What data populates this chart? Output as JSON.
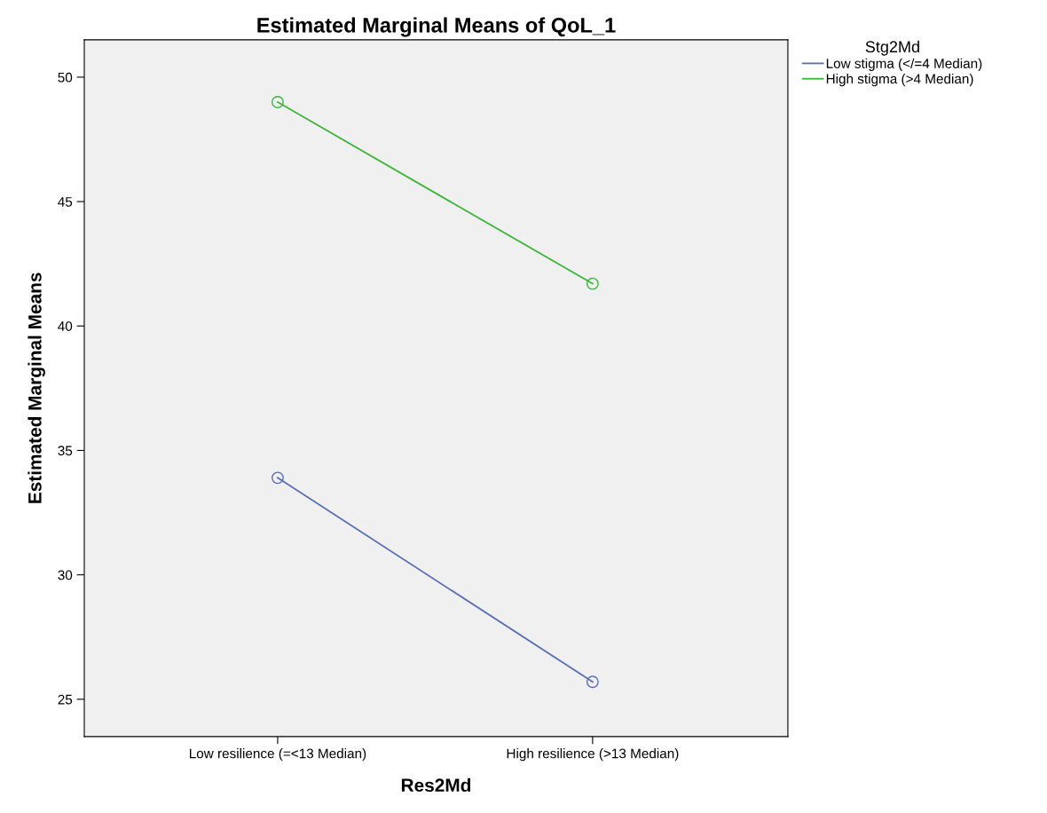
{
  "chart_data": {
    "type": "line",
    "title": "Estimated Marginal Means of QoL_1",
    "xlabel": "Res2Md",
    "ylabel": "Estimated Marginal Means",
    "categories": [
      "Low resilience (=<13 Median)",
      "High resilience (>13 Median)"
    ],
    "series": [
      {
        "name": "Low stigma (</=4 Median)",
        "color": "#5a6eb4",
        "values": [
          33.9,
          25.7
        ]
      },
      {
        "name": "High stigma (>4 Median)",
        "color": "#3cb43c",
        "values": [
          49.0,
          41.7
        ]
      }
    ],
    "ylim": [
      23.5,
      51.5
    ],
    "yticks": [
      25,
      30,
      35,
      40,
      45,
      50
    ],
    "legend_title": "Stg2Md",
    "legend": "top right",
    "marker": "circle",
    "line_style": "solid",
    "grid": false
  }
}
